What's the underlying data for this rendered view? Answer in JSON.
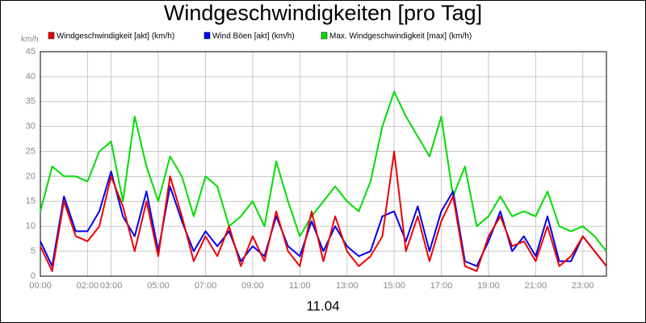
{
  "chart_data": {
    "type": "line",
    "title": "Windgeschwindigkeiten [pro Tag]",
    "ylabel": "km/h",
    "xlabel": "11.04",
    "x": [
      0,
      0.5,
      1,
      1.5,
      2,
      2.5,
      3,
      3.5,
      4,
      4.5,
      5,
      5.5,
      6,
      6.5,
      7,
      7.5,
      8,
      8.5,
      9,
      9.5,
      10,
      10.5,
      11,
      11.5,
      12,
      12.5,
      13,
      13.5,
      14,
      14.5,
      15,
      15.5,
      16,
      16.5,
      17,
      17.5,
      18,
      18.5,
      19,
      19.5,
      20,
      20.5,
      21,
      21.5,
      22,
      22.5,
      23,
      23.5,
      24
    ],
    "series": [
      {
        "name": "Windgeschwindigkeit [akt] (km/h)",
        "color": "#ee0000",
        "values": [
          6,
          1,
          15,
          8,
          7,
          10,
          20,
          14,
          5,
          15,
          4,
          20,
          12,
          3,
          8,
          4,
          10,
          2,
          8,
          3,
          13,
          5,
          2,
          13,
          3,
          12,
          5,
          2,
          4,
          8,
          25,
          5,
          12,
          3,
          11,
          16,
          2,
          1,
          8,
          12,
          6,
          7,
          3,
          10,
          2,
          4,
          8,
          5,
          2
        ]
      },
      {
        "name": "Wind Böen [akt] (km/h)",
        "color": "#0000ee",
        "values": [
          7,
          2,
          16,
          9,
          9,
          13,
          21,
          12,
          8,
          17,
          5,
          18,
          11,
          5,
          9,
          6,
          9,
          3,
          6,
          4,
          12,
          6,
          4,
          11,
          5,
          10,
          6,
          4,
          5,
          12,
          13,
          7,
          14,
          5,
          13,
          17,
          3,
          2,
          7,
          13,
          5,
          8,
          4,
          12,
          3,
          3,
          8,
          5,
          2
        ]
      },
      {
        "name": "Max. Windgeschwindigkeit [max] (km/h)",
        "color": "#00dd00",
        "values": [
          13,
          22,
          20,
          20,
          19,
          25,
          27,
          15,
          32,
          22,
          15,
          24,
          20,
          12,
          20,
          18,
          10,
          12,
          15,
          10,
          23,
          15,
          8,
          12,
          15,
          18,
          15,
          13,
          19,
          30,
          37,
          32,
          28,
          24,
          32,
          16,
          22,
          10,
          12,
          16,
          12,
          13,
          12,
          17,
          10,
          9,
          10,
          8,
          5
        ]
      }
    ],
    "xlim": [
      0,
      24
    ],
    "ylim": [
      0,
      45
    ],
    "yticks": [
      0,
      5,
      10,
      15,
      20,
      25,
      30,
      35,
      40,
      45
    ],
    "xticks": [
      {
        "value": 0,
        "label": "00:00"
      },
      {
        "value": 2,
        "label": "02:00"
      },
      {
        "value": 3,
        "label": "03:00"
      },
      {
        "value": 5,
        "label": "05:00"
      },
      {
        "value": 7,
        "label": "07:00"
      },
      {
        "value": 9,
        "label": "09:00"
      },
      {
        "value": 11,
        "label": "11:00"
      },
      {
        "value": 13,
        "label": "13:00"
      },
      {
        "value": 15,
        "label": "15:00"
      },
      {
        "value": 17,
        "label": "17:00"
      },
      {
        "value": 19,
        "label": "19:00"
      },
      {
        "value": 21,
        "label": "21:00"
      },
      {
        "value": 23,
        "label": "23:00"
      }
    ],
    "grid": true
  }
}
